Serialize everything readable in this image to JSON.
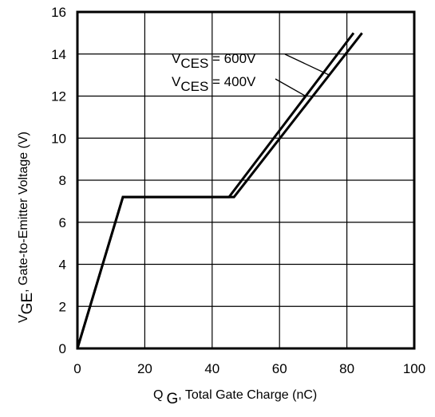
{
  "chart_data": {
    "type": "line",
    "x_ticks": [
      "0",
      "20",
      "40",
      "60",
      "80",
      "100"
    ],
    "y_ticks": [
      "0",
      "2",
      "4",
      "6",
      "8",
      "10",
      "12",
      "14",
      "16"
    ],
    "xlim": [
      0,
      100
    ],
    "ylim": [
      0,
      16
    ],
    "grid": true,
    "xlabel": {
      "main": "Q",
      "sub": "G",
      "rest": ", Total Gate Charge (nC)"
    },
    "ylabel": {
      "main": "V",
      "sub": "GE",
      "rest": ", Gate-to-Emitter Voltage (V)"
    },
    "series": [
      {
        "name": "V_CES = 600V",
        "label_main": "V",
        "label_sub": "CES",
        "label_rest": " = 600V",
        "x": [
          0,
          13.5,
          46.5,
          84.5
        ],
        "y": [
          0,
          7.2,
          7.2,
          15.0
        ]
      },
      {
        "name": "V_CES = 400V",
        "label_main": "V",
        "label_sub": "CES",
        "label_rest": " = 400V",
        "x": [
          0,
          13.5,
          45,
          82
        ],
        "y": [
          0,
          7.2,
          7.2,
          15.0
        ]
      }
    ],
    "line_color": "#000000"
  }
}
